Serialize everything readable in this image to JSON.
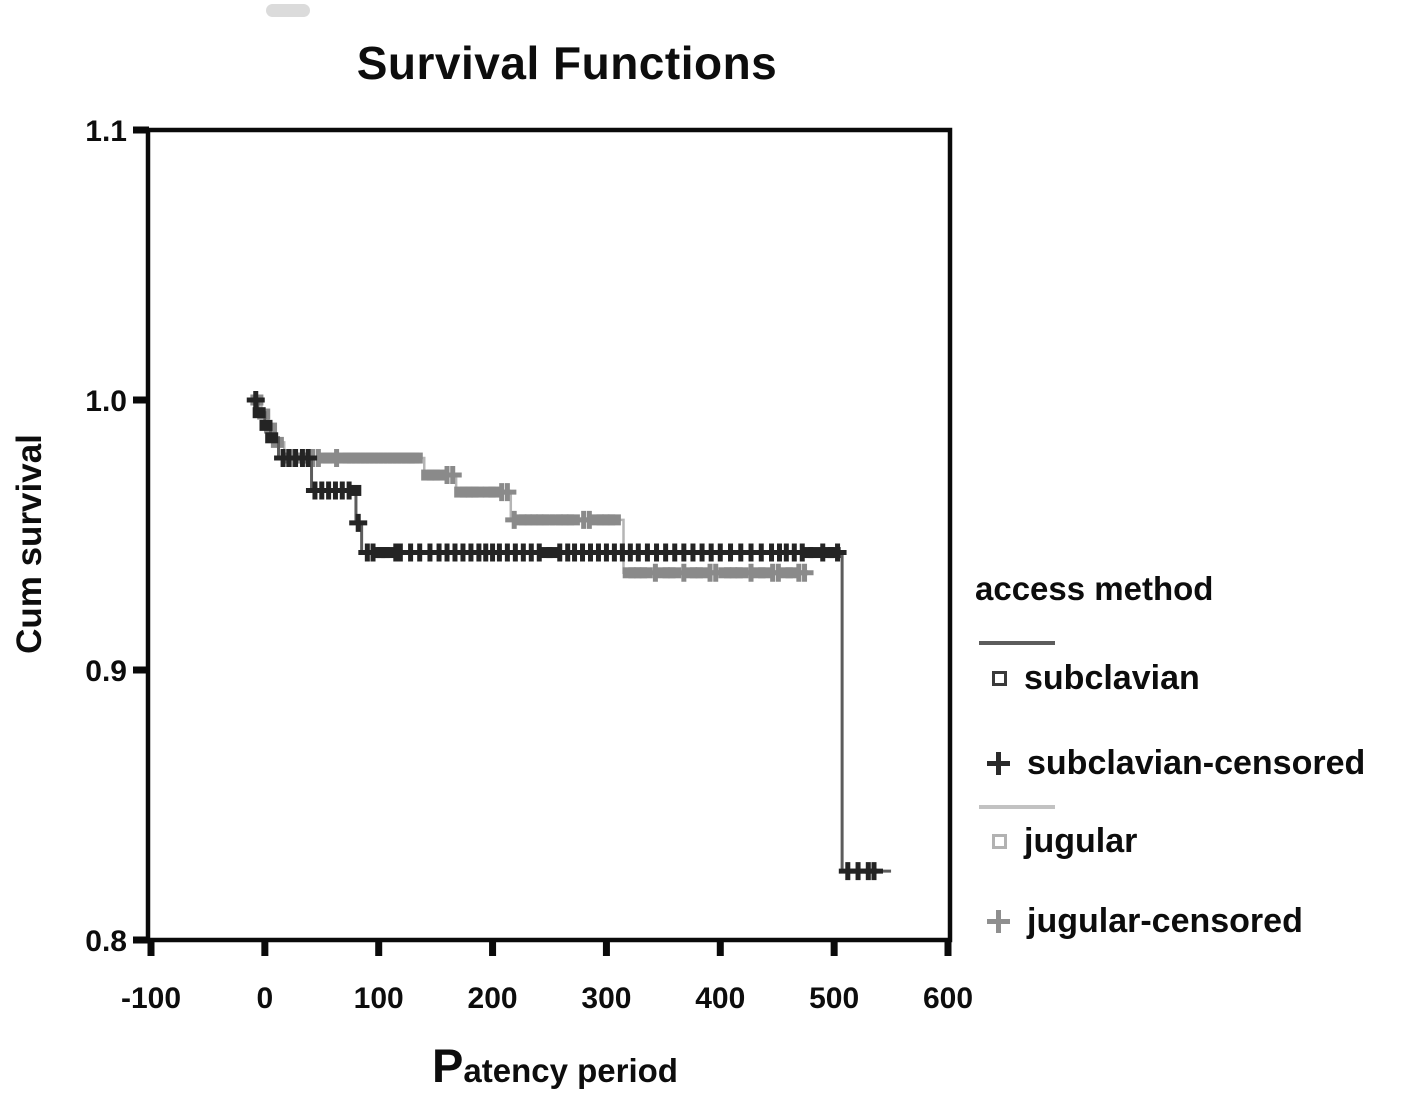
{
  "chart_data": {
    "type": "line",
    "subtype": "kaplan-meier-step",
    "title": "Survival Functions",
    "xlabel": "Patency period",
    "ylabel": "Cum survival",
    "xlim": [
      -100,
      600
    ],
    "ylim": [
      0.8,
      1.1
    ],
    "grid": false,
    "frame": true,
    "x_ticks": [
      {
        "v": -100,
        "label": "-100"
      },
      {
        "v": 0,
        "label": "0"
      },
      {
        "v": 100,
        "label": "100"
      },
      {
        "v": 200,
        "label": "200"
      },
      {
        "v": 300,
        "label": "300"
      },
      {
        "v": 400,
        "label": "400"
      },
      {
        "v": 500,
        "label": "500"
      },
      {
        "v": 600,
        "label": "600"
      }
    ],
    "y_ticks": [
      {
        "v": 1.1,
        "label": "1.1"
      },
      {
        "v": 1.0,
        "label": "1.0"
      },
      {
        "v": 0.9,
        "label": "0.9"
      },
      {
        "v": 0.8,
        "label": "0.8"
      }
    ],
    "legend": {
      "title": "access method",
      "position": "right",
      "groups": [
        {
          "line_color": "#5c5c5c",
          "items": [
            {
              "marker": "square",
              "color": "#3a3a3a",
              "label": "subclavian"
            },
            {
              "marker": "plus",
              "color": "#2a2a2a",
              "label": "subclavian-censored"
            }
          ]
        },
        {
          "line_color": "#c2c2c2",
          "items": [
            {
              "marker": "square",
              "color": "#b2b2b2",
              "label": "jugular"
            },
            {
              "marker": "plus",
              "color": "#8f8f8f",
              "label": "jugular-censored"
            }
          ]
        }
      ]
    },
    "series": [
      {
        "name": "jugular",
        "line_color": "#b5b5b5",
        "marker_color": "#8a8a8a",
        "line_width": 2.5,
        "steps": [
          [
            -10,
            1.0
          ],
          [
            -3,
            0.9948
          ],
          [
            3,
            0.9896
          ],
          [
            9,
            0.9843
          ],
          [
            17,
            0.9785
          ],
          [
            140,
            0.9722
          ],
          [
            168,
            0.9659
          ],
          [
            216,
            0.9556
          ],
          [
            315,
            0.936
          ],
          [
            476,
            0.936
          ]
        ],
        "censored_plus": [
          [
            25,
            0.9785
          ],
          [
            42,
            0.9785
          ],
          [
            47,
            0.9785
          ],
          [
            63,
            0.9785
          ],
          [
            160,
            0.9722
          ],
          [
            165,
            0.9722
          ],
          [
            208,
            0.9659
          ],
          [
            213,
            0.9659
          ],
          [
            219,
            0.9556
          ],
          [
            280,
            0.9556
          ],
          [
            285,
            0.9556
          ],
          [
            343,
            0.936
          ],
          [
            368,
            0.936
          ],
          [
            391,
            0.936
          ],
          [
            396,
            0.936
          ],
          [
            427,
            0.936
          ],
          [
            446,
            0.936
          ],
          [
            451,
            0.936
          ],
          [
            469,
            0.936
          ],
          [
            474,
            0.936
          ]
        ],
        "square_marks": [
          [
            -7,
            1.0
          ],
          [
            -1,
            0.9948
          ],
          [
            5,
            0.9896
          ],
          [
            11,
            0.9843
          ],
          [
            20,
            0.9785
          ],
          [
            31,
            0.9785
          ],
          [
            35,
            0.9785
          ],
          [
            53,
            0.9785
          ],
          [
            57,
            0.9785
          ],
          [
            70,
            0.9785
          ],
          [
            74,
            0.9785
          ],
          [
            78,
            0.9785
          ],
          [
            82,
            0.9785
          ],
          [
            86,
            0.9785
          ],
          [
            90,
            0.9785
          ],
          [
            94,
            0.9785
          ],
          [
            98,
            0.9785
          ],
          [
            102,
            0.9785
          ],
          [
            106,
            0.9785
          ],
          [
            110,
            0.9785
          ],
          [
            114,
            0.9785
          ],
          [
            118,
            0.9785
          ],
          [
            122,
            0.9785
          ],
          [
            126,
            0.9785
          ],
          [
            130,
            0.9785
          ],
          [
            133,
            0.9785
          ],
          [
            143,
            0.9722
          ],
          [
            148,
            0.9722
          ],
          [
            153,
            0.9722
          ],
          [
            172,
            0.9659
          ],
          [
            177,
            0.9659
          ],
          [
            182,
            0.9659
          ],
          [
            187,
            0.9659
          ],
          [
            197,
            0.9659
          ],
          [
            202,
            0.9659
          ],
          [
            224,
            0.9556
          ],
          [
            229,
            0.9556
          ],
          [
            234,
            0.9556
          ],
          [
            239,
            0.9556
          ],
          [
            244,
            0.9556
          ],
          [
            249,
            0.9556
          ],
          [
            256,
            0.9556
          ],
          [
            261,
            0.9556
          ],
          [
            266,
            0.9556
          ],
          [
            271,
            0.9556
          ],
          [
            292,
            0.9556
          ],
          [
            297,
            0.9556
          ],
          [
            302,
            0.9556
          ],
          [
            307,
            0.9556
          ],
          [
            320,
            0.936
          ],
          [
            325,
            0.936
          ],
          [
            330,
            0.936
          ],
          [
            335,
            0.936
          ],
          [
            350,
            0.936
          ],
          [
            355,
            0.936
          ],
          [
            360,
            0.936
          ],
          [
            374,
            0.936
          ],
          [
            379,
            0.936
          ],
          [
            384,
            0.936
          ],
          [
            404,
            0.936
          ],
          [
            409,
            0.936
          ],
          [
            414,
            0.936
          ],
          [
            419,
            0.936
          ],
          [
            434,
            0.936
          ],
          [
            439,
            0.936
          ],
          [
            458,
            0.936
          ],
          [
            463,
            0.936
          ]
        ]
      },
      {
        "name": "subclavian",
        "line_color": "#5c5c5c",
        "marker_color": "#242424",
        "line_width": 3,
        "steps": [
          [
            -12,
            1.0
          ],
          [
            -6,
            0.9953
          ],
          [
            0,
            0.9906
          ],
          [
            5,
            0.986
          ],
          [
            12,
            0.9785
          ],
          [
            41,
            0.9665
          ],
          [
            80,
            0.9545
          ],
          [
            85,
            0.9435
          ],
          [
            507,
            0.8255
          ],
          [
            550,
            0.8255
          ]
        ],
        "censored_plus": [
          [
            -8,
            1.0
          ],
          [
            16,
            0.9785
          ],
          [
            21,
            0.9785
          ],
          [
            27,
            0.9785
          ],
          [
            33,
            0.9785
          ],
          [
            38,
            0.9785
          ],
          [
            44,
            0.9665
          ],
          [
            50,
            0.9665
          ],
          [
            56,
            0.9665
          ],
          [
            62,
            0.9665
          ],
          [
            68,
            0.9665
          ],
          [
            74,
            0.9665
          ],
          [
            82,
            0.9545
          ],
          [
            90,
            0.9435
          ],
          [
            95,
            0.9435
          ],
          [
            115,
            0.9435
          ],
          [
            119,
            0.9435
          ],
          [
            128,
            0.9435
          ],
          [
            136,
            0.9435
          ],
          [
            145,
            0.9435
          ],
          [
            153,
            0.9435
          ],
          [
            160,
            0.9435
          ],
          [
            167,
            0.9435
          ],
          [
            174,
            0.9435
          ],
          [
            181,
            0.9435
          ],
          [
            188,
            0.9435
          ],
          [
            194,
            0.9435
          ],
          [
            200,
            0.9435
          ],
          [
            206,
            0.9435
          ],
          [
            213,
            0.9435
          ],
          [
            220,
            0.9435
          ],
          [
            227,
            0.9435
          ],
          [
            234,
            0.9435
          ],
          [
            241,
            0.9435
          ],
          [
            259,
            0.9435
          ],
          [
            266,
            0.9435
          ],
          [
            272,
            0.9435
          ],
          [
            279,
            0.9435
          ],
          [
            286,
            0.9435
          ],
          [
            293,
            0.9435
          ],
          [
            300,
            0.9435
          ],
          [
            307,
            0.9435
          ],
          [
            314,
            0.9435
          ],
          [
            321,
            0.9435
          ],
          [
            328,
            0.9435
          ],
          [
            336,
            0.9435
          ],
          [
            344,
            0.9435
          ],
          [
            352,
            0.9435
          ],
          [
            360,
            0.9435
          ],
          [
            368,
            0.9435
          ],
          [
            376,
            0.9435
          ],
          [
            384,
            0.9435
          ],
          [
            392,
            0.9435
          ],
          [
            400,
            0.9435
          ],
          [
            409,
            0.9435
          ],
          [
            418,
            0.9435
          ],
          [
            427,
            0.9435
          ],
          [
            436,
            0.9435
          ],
          [
            445,
            0.9435
          ],
          [
            452,
            0.9435
          ],
          [
            458,
            0.9435
          ],
          [
            465,
            0.9435
          ],
          [
            472,
            0.9435
          ],
          [
            490,
            0.9435
          ],
          [
            503,
            0.9435
          ],
          [
            512,
            0.8255
          ],
          [
            521,
            0.8255
          ],
          [
            530,
            0.8255
          ],
          [
            535,
            0.8255
          ]
        ],
        "square_marks": [
          [
            -5,
            0.9953
          ],
          [
            1,
            0.9906
          ],
          [
            6,
            0.986
          ],
          [
            79,
            0.9665
          ],
          [
            100,
            0.9435
          ],
          [
            104,
            0.9435
          ],
          [
            108,
            0.9435
          ],
          [
            247,
            0.9435
          ],
          [
            253,
            0.9435
          ],
          [
            476,
            0.9435
          ],
          [
            483,
            0.9435
          ],
          [
            494,
            0.9435
          ],
          [
            500,
            0.9435
          ]
        ]
      }
    ]
  }
}
